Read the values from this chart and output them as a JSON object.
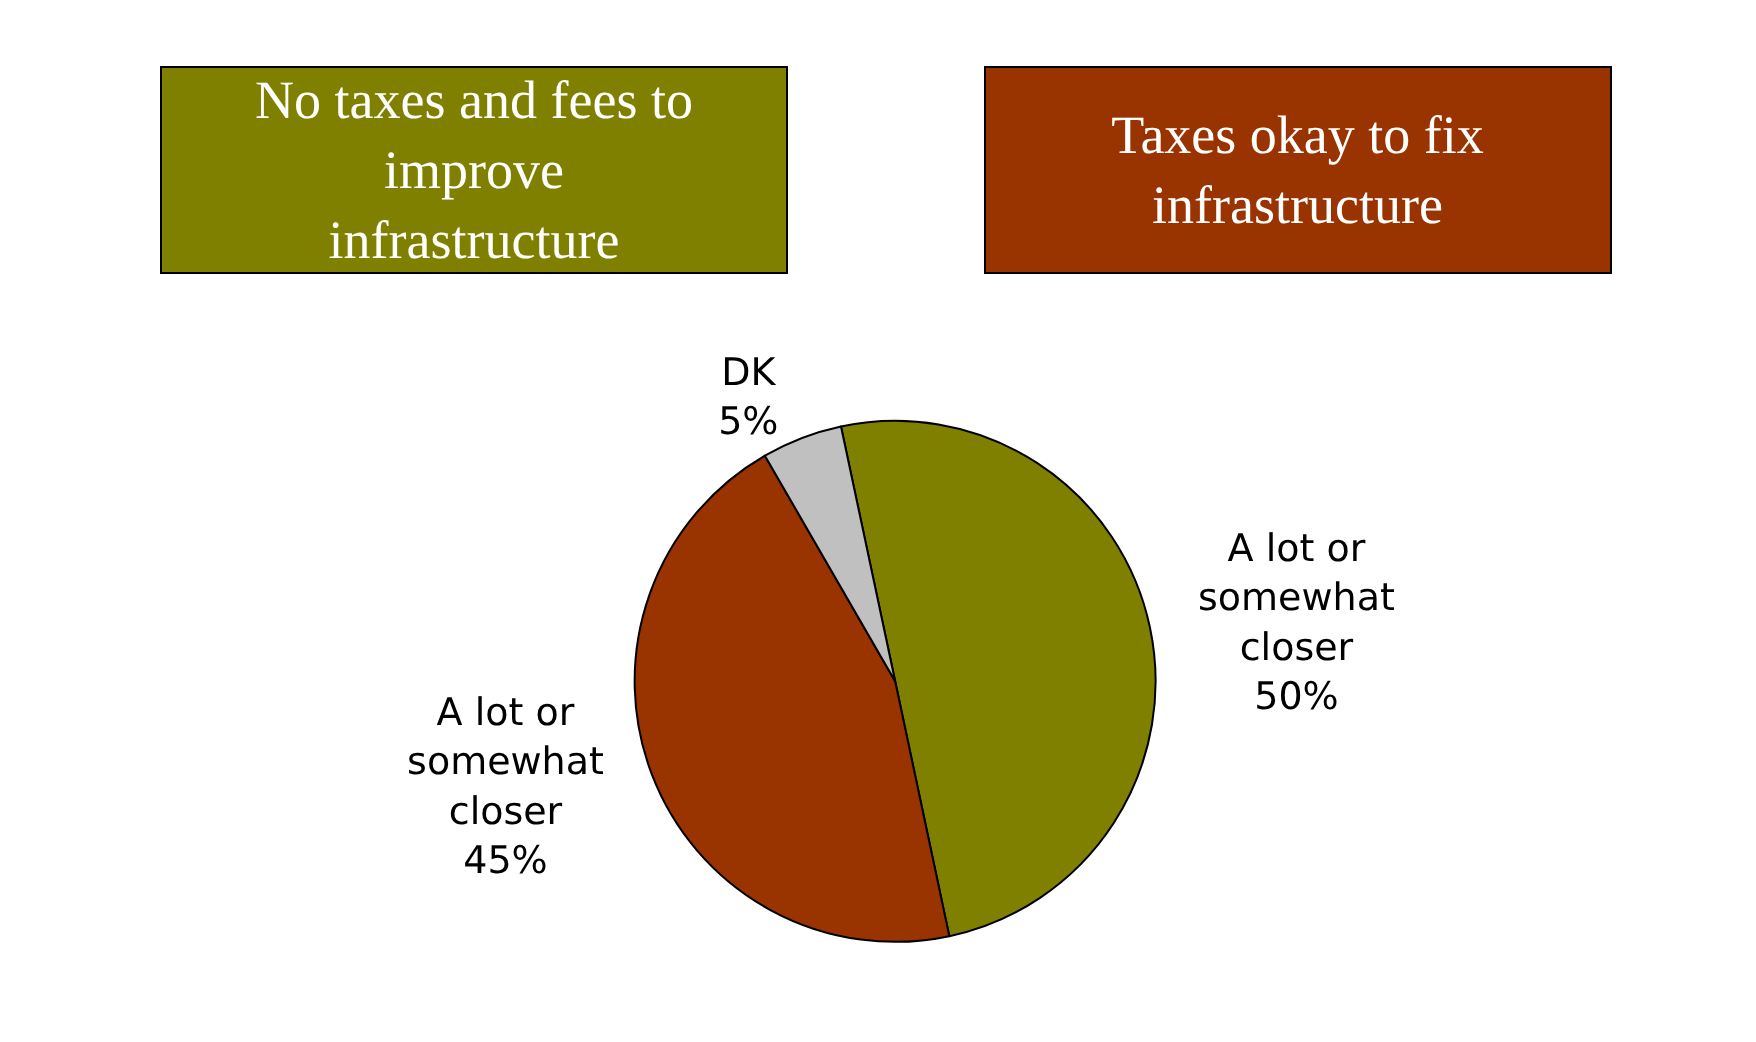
{
  "chart_data": {
    "type": "pie",
    "categories": [
      "A lot or somewhat closer",
      "A lot or somewhat closer",
      "DK"
    ],
    "values": [
      50,
      45,
      5
    ],
    "colors": [
      "#808000",
      "#993300",
      "#c0c0c0"
    ],
    "annotations": [
      "No taxes and fees to improve infrastructure",
      "Taxes okay to fix infrastructure"
    ],
    "value_labels": [
      "50%",
      "45%",
      "5%"
    ],
    "legend": false
  }
}
